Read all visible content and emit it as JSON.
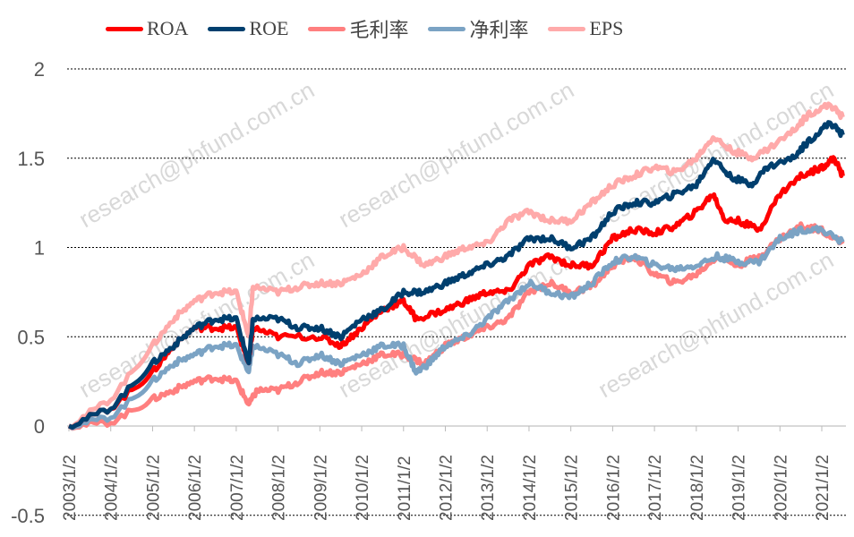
{
  "watermark": "research@phfund.com.cn",
  "chart_data": {
    "type": "line",
    "title": "",
    "xlabel": "",
    "ylabel": "",
    "ylim": [
      -0.5,
      2
    ],
    "yticks": [
      "-0.5",
      "0",
      "0.5",
      "1",
      "1.5",
      "2"
    ],
    "ytick_values": [
      -0.5,
      0,
      0.5,
      1,
      1.5,
      2
    ],
    "xlim": [
      2003,
      2021.5
    ],
    "xtick_labels": [
      "2003/1/2",
      "2004/1/2",
      "2005/1/2",
      "2006/1/2",
      "2007/1/2",
      "2008/1/2",
      "2009/1/2",
      "2010/1/2",
      "2011/1/2",
      "2012/1/2",
      "2013/1/2",
      "2014/1/2",
      "2015/1/2",
      "2016/1/2",
      "2017/1/2",
      "2018/1/2",
      "2019/1/2",
      "2020/1/2",
      "2021/1/2"
    ],
    "grid": "horizontal dashed",
    "legend_position": "top",
    "series": [
      {
        "name": "EPS",
        "color": "#FFAAAA",
        "x": [
          2003,
          2004,
          2005,
          2005.5,
          2006,
          2006.5,
          2007,
          2007.3,
          2007.4,
          2008,
          2008.5,
          2009,
          2009.5,
          2010,
          2010.5,
          2011,
          2011.5,
          2012,
          2012.5,
          2013,
          2013.5,
          2014,
          2014.5,
          2015,
          2015.5,
          2016,
          2016.5,
          2017,
          2017.5,
          2018,
          2018.4,
          2018.8,
          2019.3,
          2019.7,
          2020.3,
          2020.7,
          2021.2,
          2021.5
        ],
        "y": [
          0,
          0.15,
          0.45,
          0.6,
          0.7,
          0.75,
          0.75,
          0.5,
          0.78,
          0.75,
          0.78,
          0.8,
          0.8,
          0.85,
          0.95,
          1.0,
          0.9,
          0.95,
          1.0,
          1.02,
          1.15,
          1.2,
          1.15,
          1.15,
          1.25,
          1.35,
          1.4,
          1.45,
          1.42,
          1.5,
          1.62,
          1.55,
          1.5,
          1.55,
          1.65,
          1.75,
          1.8,
          1.73
        ]
      },
      {
        "name": "毛利率",
        "color": "#FF7F7F",
        "x": [
          2003,
          2004,
          2005,
          2005.5,
          2006,
          2006.5,
          2007,
          2007.3,
          2007.5,
          2008,
          2008.5,
          2009,
          2009.5,
          2010,
          2010.5,
          2011,
          2011.5,
          2012,
          2012.5,
          2013,
          2013.5,
          2014,
          2014.5,
          2015,
          2015.5,
          2016,
          2016.5,
          2017,
          2017.5,
          2018,
          2018.5,
          2019,
          2019.5,
          2020,
          2020.5,
          2021,
          2021.5
        ],
        "y": [
          0,
          0.02,
          0.15,
          0.2,
          0.25,
          0.27,
          0.25,
          0.12,
          0.2,
          0.2,
          0.25,
          0.3,
          0.3,
          0.35,
          0.4,
          0.4,
          0.35,
          0.45,
          0.5,
          0.55,
          0.6,
          0.75,
          0.8,
          0.75,
          0.78,
          0.9,
          0.95,
          0.85,
          0.8,
          0.85,
          0.95,
          0.9,
          0.95,
          1.05,
          1.12,
          1.1,
          1.02
        ]
      },
      {
        "name": "净利率",
        "color": "#7BA3C4",
        "x": [
          2003,
          2004,
          2005,
          2005.5,
          2006,
          2006.5,
          2007,
          2007.3,
          2007.4,
          2008,
          2008.5,
          2009,
          2009.5,
          2010,
          2010.5,
          2011,
          2011.3,
          2011.6,
          2012,
          2012.5,
          2013,
          2013.5,
          2014,
          2014.5,
          2015,
          2015.5,
          2016,
          2016.5,
          2017,
          2017.5,
          2018,
          2018.5,
          2019,
          2019.5,
          2020,
          2020.5,
          2021,
          2021.5
        ],
        "y": [
          0,
          0.05,
          0.25,
          0.35,
          0.4,
          0.45,
          0.45,
          0.3,
          0.45,
          0.4,
          0.35,
          0.4,
          0.35,
          0.4,
          0.45,
          0.45,
          0.3,
          0.35,
          0.45,
          0.5,
          0.6,
          0.7,
          0.8,
          0.75,
          0.72,
          0.8,
          0.92,
          0.95,
          0.9,
          0.88,
          0.9,
          0.95,
          0.92,
          0.92,
          1.05,
          1.1,
          1.1,
          1.03
        ]
      },
      {
        "name": "ROA",
        "color": "#FF0000",
        "x": [
          2003,
          2004,
          2005,
          2005.5,
          2006,
          2006.5,
          2007,
          2007.3,
          2007.4,
          2008,
          2009,
          2009.5,
          2010,
          2010.5,
          2011,
          2011.3,
          2012,
          2012.5,
          2013,
          2013.5,
          2014,
          2014.5,
          2015,
          2015.5,
          2016,
          2016.5,
          2017,
          2017.5,
          2018,
          2018.4,
          2018.7,
          2019,
          2019.5,
          2020,
          2020.5,
          2021,
          2021.3,
          2021.5
        ],
        "y": [
          0,
          0.1,
          0.3,
          0.45,
          0.55,
          0.55,
          0.55,
          0.35,
          0.55,
          0.5,
          0.5,
          0.45,
          0.55,
          0.65,
          0.7,
          0.6,
          0.65,
          0.7,
          0.75,
          0.75,
          0.9,
          0.95,
          0.9,
          0.9,
          1.05,
          1.1,
          1.08,
          1.12,
          1.2,
          1.3,
          1.15,
          1.15,
          1.1,
          1.3,
          1.4,
          1.45,
          1.5,
          1.4
        ]
      },
      {
        "name": "ROE",
        "color": "#003F6E",
        "x": [
          2003,
          2004,
          2005,
          2005.5,
          2006,
          2006.5,
          2007,
          2007.3,
          2007.4,
          2008,
          2008.5,
          2009,
          2009.5,
          2010,
          2010.5,
          2011,
          2011.5,
          2012,
          2012.5,
          2013,
          2013.5,
          2014,
          2014.5,
          2015,
          2015.5,
          2016,
          2016.5,
          2017,
          2017.5,
          2018,
          2018.4,
          2018.8,
          2019.3,
          2019.7,
          2020.3,
          2020.7,
          2021.2,
          2021.5
        ],
        "y": [
          0,
          0.1,
          0.35,
          0.45,
          0.55,
          0.6,
          0.6,
          0.35,
          0.6,
          0.6,
          0.55,
          0.55,
          0.5,
          0.6,
          0.65,
          0.75,
          0.75,
          0.8,
          0.85,
          0.9,
          0.95,
          1.05,
          1.05,
          1.0,
          1.05,
          1.2,
          1.25,
          1.25,
          1.3,
          1.35,
          1.5,
          1.4,
          1.35,
          1.45,
          1.5,
          1.6,
          1.7,
          1.63
        ]
      }
    ],
    "legend_order": [
      "ROA",
      "ROE",
      "毛利率",
      "净利率",
      "EPS"
    ]
  }
}
